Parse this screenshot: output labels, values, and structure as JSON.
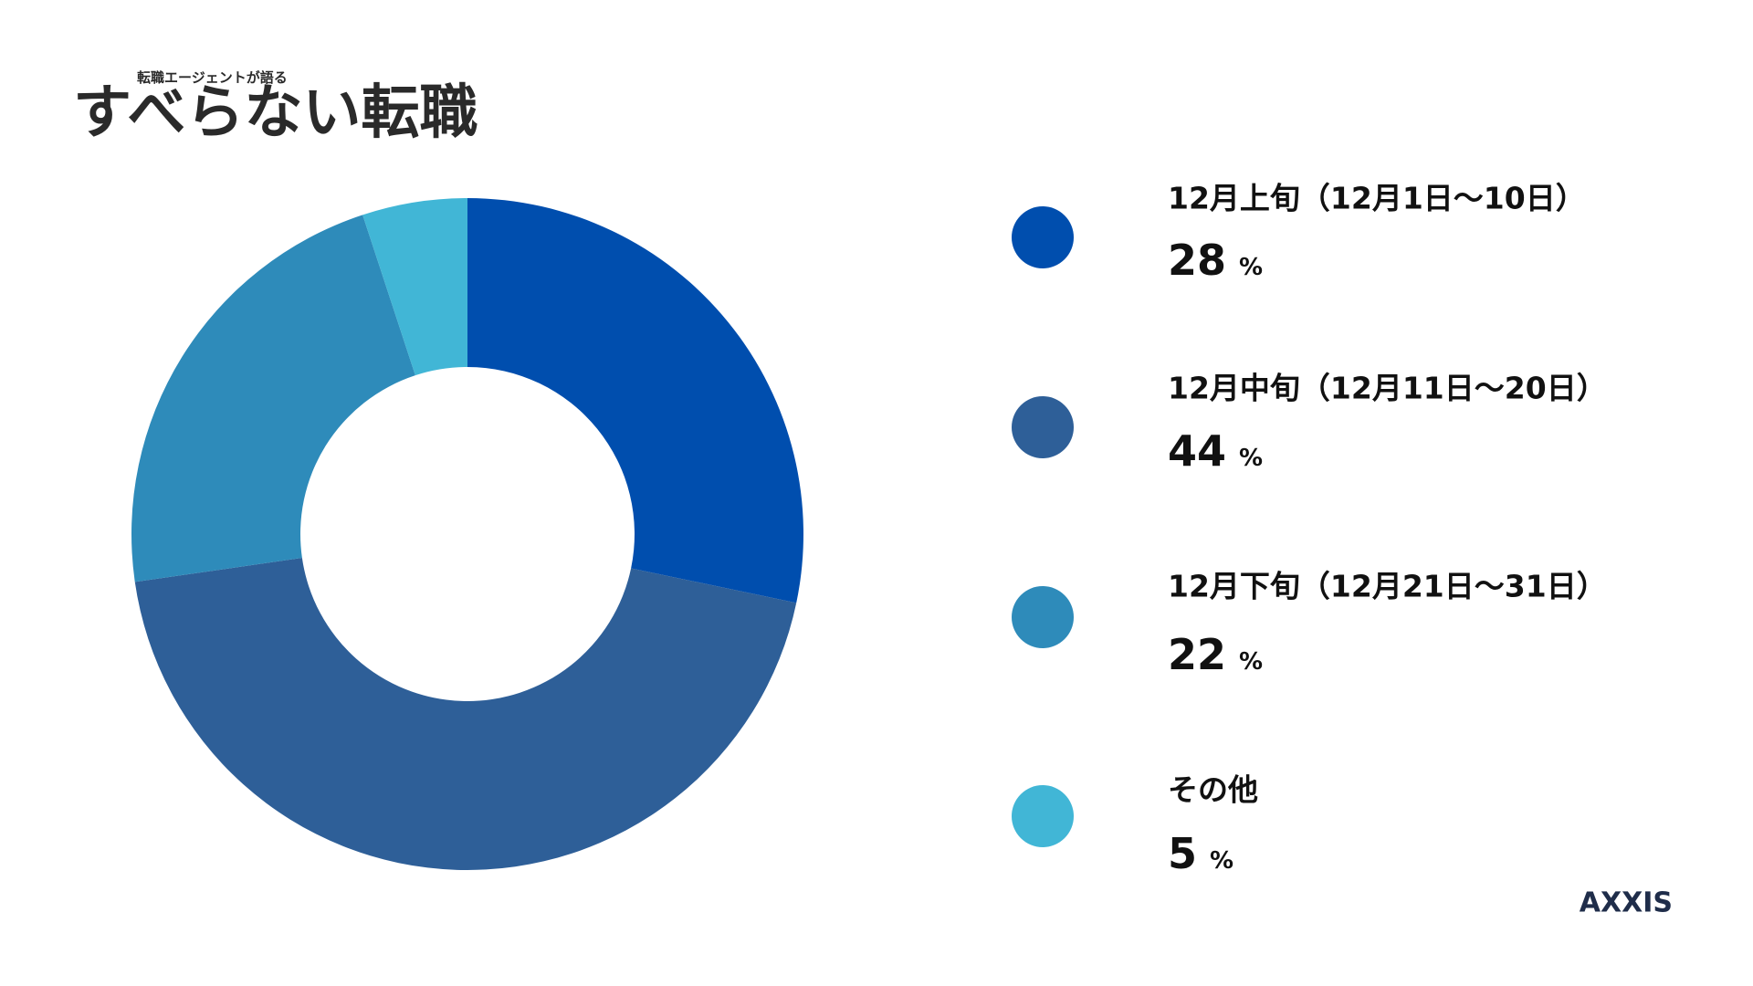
{
  "logo": {
    "tagline": "転職エージェントが語る",
    "title": "すべらない転職"
  },
  "brand": "AXXIS",
  "chart_data": {
    "type": "donut",
    "unit": "%",
    "categories": [
      "12月上旬（12月1日〜10日）",
      "12月中旬（12月11日〜20日）",
      "12月下旬（12月21日〜31日）",
      "その他"
    ],
    "values": [
      28,
      44,
      22,
      5
    ],
    "colors": [
      "#004eae",
      "#2e5f98",
      "#2e8bba",
      "#41b6d6"
    ]
  }
}
